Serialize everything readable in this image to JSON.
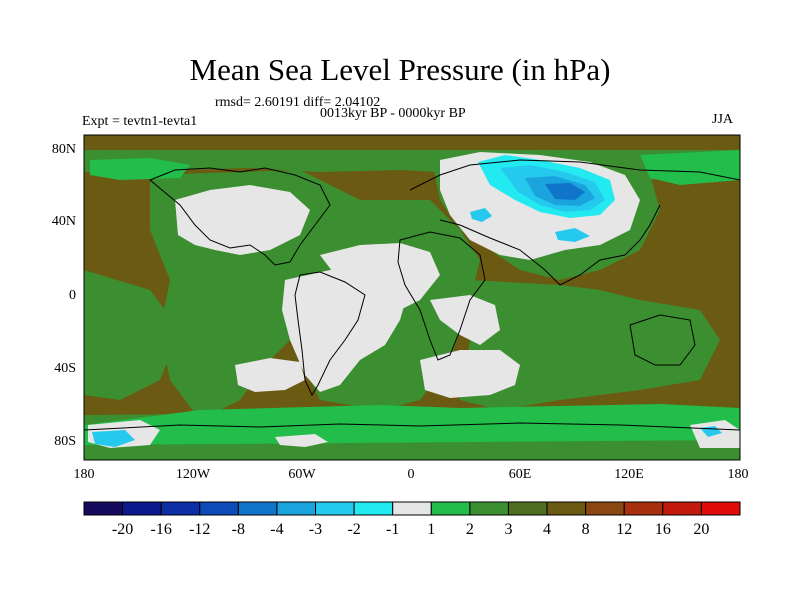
{
  "title": "Mean Sea Level Pressure (in hPa)",
  "stats": "rmsd= 2.60191 diff= 2.04102",
  "period": "0013kyr BP - 0000kyr BP",
  "expt": "Expt = tevtn1-tevta1",
  "season": "JJA",
  "lat_labels": [
    "80N",
    "40N",
    "0",
    "40S",
    "80S"
  ],
  "lon_labels": [
    "180",
    "120W",
    "60W",
    "0",
    "60E",
    "120E",
    "180"
  ],
  "colorbar": {
    "labels": [
      "-20",
      "-16",
      "-12",
      "-8",
      "-4",
      "-3",
      "-2",
      "-1",
      "1",
      "2",
      "3",
      "4",
      "8",
      "12",
      "16",
      "20"
    ],
    "colors": [
      "#160a5e",
      "#0b1a8c",
      "#0d2fa6",
      "#0d4cb8",
      "#1074c8",
      "#1aa3dd",
      "#26c9ee",
      "#22eaf0",
      "#e6e6e6",
      "#22bd4a",
      "#3b8f30",
      "#4f6e1f",
      "#6b5a12",
      "#8a4712",
      "#a8300f",
      "#c21a0c",
      "#e00a0a"
    ]
  },
  "map_colors": {
    "brown": "#6b5a12",
    "olive": "#4f6e1f",
    "green": "#3b8f30",
    "light_green": "#22bd4a",
    "white": "#e6e6e6",
    "cyan": "#22eaf0",
    "sky": "#26c9ee",
    "blue": "#1aa3dd",
    "mid_blue": "#1074c8"
  }
}
